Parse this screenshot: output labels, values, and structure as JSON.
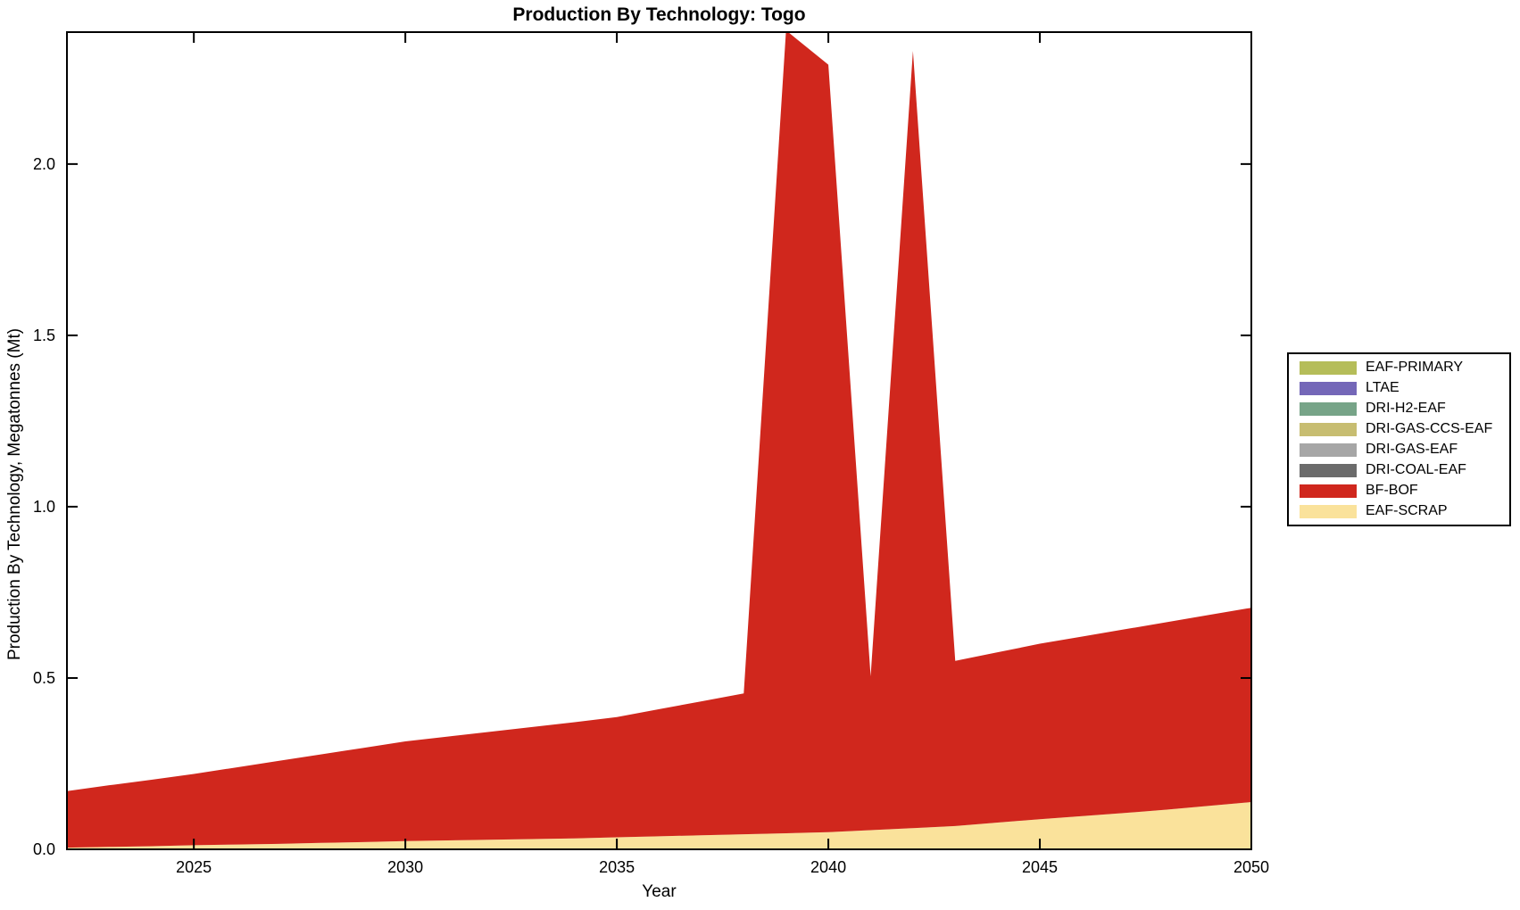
{
  "page": {
    "background_color": "#ffffff",
    "ink_color": "#000000"
  },
  "chart_data": {
    "type": "area",
    "stacked": true,
    "title": "Production By Technology: Togo",
    "xlabel": "Year",
    "ylabel": "Production By Technology, Megatonnes (Mt)",
    "xlim": [
      2022,
      2050
    ],
    "ylim": [
      0,
      2.385
    ],
    "grid": false,
    "legend_position": "outside-right",
    "xticks": [
      {
        "value": 2025,
        "label": "2025"
      },
      {
        "value": 2030,
        "label": "2030"
      },
      {
        "value": 2035,
        "label": "2035"
      },
      {
        "value": 2040,
        "label": "2040"
      },
      {
        "value": 2045,
        "label": "2045"
      },
      {
        "value": 2050,
        "label": "2050"
      }
    ],
    "yticks": [
      {
        "value": 0.0,
        "label": "0.0"
      },
      {
        "value": 0.5,
        "label": "0.5"
      },
      {
        "value": 1.0,
        "label": "1.0"
      },
      {
        "value": 1.5,
        "label": "1.5"
      },
      {
        "value": 2.0,
        "label": "2.0"
      }
    ],
    "x": [
      2022,
      2023,
      2024,
      2025,
      2026,
      2027,
      2028,
      2029,
      2030,
      2031,
      2032,
      2033,
      2034,
      2035,
      2036,
      2037,
      2038,
      2039,
      2040,
      2041,
      2042,
      2043,
      2044,
      2045,
      2046,
      2047,
      2048,
      2049,
      2050
    ],
    "stack_bottom_to_top": [
      "EAF-SCRAP",
      "BF-BOF",
      "DRI-COAL-EAF",
      "DRI-GAS-EAF",
      "DRI-GAS-CCS-EAF",
      "DRI-H2-EAF",
      "LTAE",
      "EAF-PRIMARY"
    ],
    "series": [
      {
        "name": "EAF-PRIMARY",
        "color": "#b5bd59",
        "values": 0
      },
      {
        "name": "LTAE",
        "color": "#7467b8",
        "values": 0
      },
      {
        "name": "DRI-H2-EAF",
        "color": "#77a488",
        "values": 0
      },
      {
        "name": "DRI-GAS-CCS-EAF",
        "color": "#c7bd71",
        "values": 0
      },
      {
        "name": "DRI-GAS-EAF",
        "color": "#a6a6a6",
        "values": 0
      },
      {
        "name": "DRI-COAL-EAF",
        "color": "#6b6b6b",
        "values": 0
      },
      {
        "name": "BF-BOF",
        "color": "#d0271d",
        "values": [
          0.165,
          0.18,
          0.194,
          0.208,
          0.225,
          0.242,
          0.258,
          0.275,
          0.291,
          0.303,
          0.315,
          0.327,
          0.339,
          0.351,
          0.371,
          0.391,
          0.411,
          2.343,
          2.24,
          0.449,
          2.268,
          0.482,
          0.497,
          0.512,
          0.524,
          0.536,
          0.547,
          0.557,
          0.567
        ]
      },
      {
        "name": "EAF-SCRAP",
        "color": "#fae29b",
        "values": [
          0.005,
          0.007,
          0.009,
          0.012,
          0.014,
          0.016,
          0.019,
          0.021,
          0.024,
          0.026,
          0.028,
          0.03,
          0.032,
          0.035,
          0.038,
          0.041,
          0.044,
          0.047,
          0.05,
          0.056,
          0.062,
          0.068,
          0.078,
          0.088,
          0.097,
          0.106,
          0.116,
          0.127,
          0.138
        ]
      }
    ]
  }
}
